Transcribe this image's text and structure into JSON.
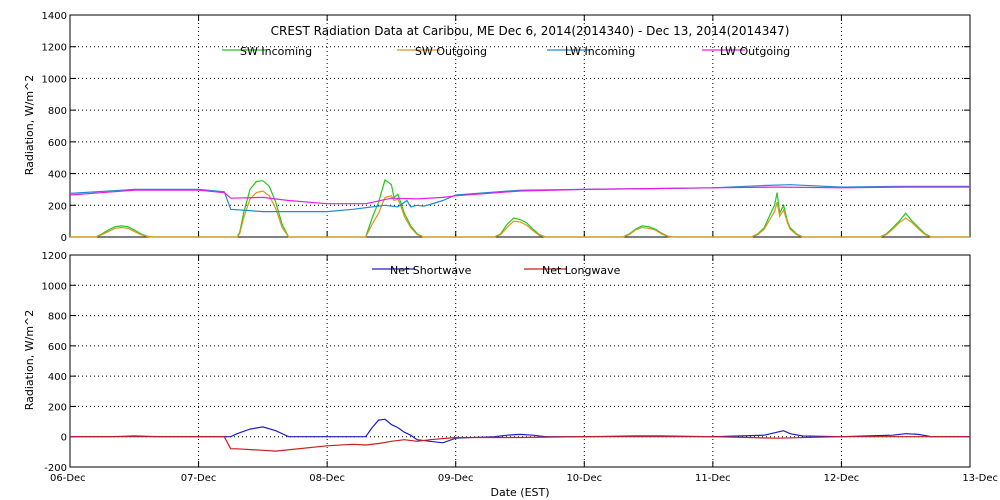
{
  "chart_data": [
    {
      "type": "line",
      "title": "CREST Radiation Data at Caribou, ME   Dec  6, 2014(2014340) - Dec 13, 2014(2014347)",
      "xlabel": "",
      "ylabel": "Radiation, W/m^2",
      "ylim": [
        0,
        1400
      ],
      "yticks": [
        0,
        200,
        400,
        600,
        800,
        1000,
        1200,
        1400
      ],
      "xlim": [
        0,
        7
      ],
      "xticks": [
        0,
        1,
        2,
        3,
        4,
        5,
        6,
        7
      ],
      "grid": true,
      "legend_position": "top",
      "series": [
        {
          "name": "SW Incoming",
          "color": "#22c81e",
          "x": [
            0,
            0.2,
            0.25,
            0.3,
            0.35,
            0.4,
            0.45,
            0.5,
            0.55,
            0.6,
            0.65,
            0.7,
            1.3,
            1.32,
            1.35,
            1.4,
            1.45,
            1.5,
            1.55,
            1.6,
            1.65,
            1.7,
            2.3,
            2.35,
            2.4,
            2.45,
            2.5,
            2.52,
            2.55,
            2.58,
            2.6,
            2.65,
            2.7,
            2.75,
            3.3,
            3.35,
            3.4,
            3.45,
            3.5,
            3.55,
            3.6,
            3.65,
            3.7,
            4.3,
            4.35,
            4.4,
            4.45,
            4.5,
            4.55,
            4.6,
            4.65,
            4.7,
            5.3,
            5.35,
            5.4,
            5.45,
            5.48,
            5.5,
            5.52,
            5.55,
            5.58,
            5.6,
            5.65,
            5.7,
            6.3,
            6.35,
            6.4,
            6.45,
            6.5,
            6.55,
            6.6,
            6.65,
            6.7,
            7
          ],
          "y": [
            0,
            0,
            20,
            45,
            65,
            70,
            65,
            45,
            20,
            5,
            0,
            0,
            0,
            30,
            150,
            300,
            350,
            355,
            320,
            220,
            80,
            0,
            0,
            120,
            220,
            360,
            330,
            250,
            270,
            200,
            150,
            70,
            20,
            0,
            0,
            20,
            80,
            120,
            110,
            90,
            50,
            15,
            0,
            0,
            20,
            50,
            70,
            65,
            50,
            25,
            5,
            0,
            0,
            20,
            60,
            150,
            200,
            280,
            150,
            200,
            100,
            60,
            20,
            0,
            0,
            20,
            60,
            100,
            150,
            100,
            60,
            20,
            0,
            0
          ]
        },
        {
          "name": "SW Outgoing",
          "color": "#e0941e",
          "x": [
            0,
            0.2,
            0.25,
            0.3,
            0.35,
            0.4,
            0.45,
            0.5,
            0.55,
            0.6,
            0.65,
            0.7,
            1.3,
            1.32,
            1.35,
            1.4,
            1.45,
            1.5,
            1.55,
            1.6,
            1.65,
            1.7,
            2.3,
            2.35,
            2.4,
            2.45,
            2.5,
            2.52,
            2.55,
            2.58,
            2.6,
            2.65,
            2.7,
            2.75,
            3.3,
            3.35,
            3.4,
            3.45,
            3.5,
            3.55,
            3.6,
            3.65,
            3.7,
            4.3,
            4.35,
            4.4,
            4.45,
            4.5,
            4.55,
            4.6,
            4.65,
            4.7,
            5.3,
            5.35,
            5.4,
            5.45,
            5.48,
            5.5,
            5.52,
            5.55,
            5.58,
            5.6,
            5.65,
            5.7,
            6.3,
            6.35,
            6.4,
            6.45,
            6.5,
            6.55,
            6.6,
            6.65,
            6.7,
            7
          ],
          "y": [
            0,
            0,
            15,
            35,
            55,
            60,
            55,
            35,
            15,
            3,
            0,
            0,
            0,
            20,
            120,
            240,
            280,
            290,
            260,
            180,
            60,
            0,
            0,
            80,
            150,
            250,
            260,
            230,
            240,
            180,
            130,
            60,
            15,
            0,
            0,
            15,
            60,
            100,
            95,
            75,
            40,
            10,
            0,
            0,
            15,
            45,
            60,
            55,
            45,
            20,
            3,
            0,
            0,
            15,
            50,
            120,
            160,
            220,
            130,
            170,
            90,
            50,
            15,
            0,
            0,
            15,
            50,
            90,
            120,
            90,
            50,
            15,
            0,
            0
          ]
        },
        {
          "name": "LW Incoming",
          "color": "#1e8cd2",
          "x": [
            0,
            0.5,
            1,
            1.2,
            1.25,
            1.5,
            2,
            2.2,
            2.35,
            2.45,
            2.55,
            2.62,
            2.65,
            2.7,
            2.75,
            2.8,
            2.9,
            3,
            3.5,
            4,
            4.5,
            5,
            5.4,
            5.6,
            6,
            6.5,
            7
          ],
          "y": [
            275,
            300,
            300,
            285,
            175,
            160,
            160,
            175,
            190,
            200,
            190,
            230,
            190,
            200,
            195,
            205,
            230,
            265,
            295,
            300,
            305,
            310,
            325,
            330,
            315,
            320,
            320
          ]
        },
        {
          "name": "LW Outgoing",
          "color": "#e61ee6",
          "x": [
            0,
            0.5,
            1,
            1.2,
            1.25,
            1.5,
            1.7,
            2,
            2.3,
            2.5,
            2.7,
            2.9,
            3,
            3.5,
            4,
            4.5,
            5,
            5.5,
            6,
            6.5,
            7
          ],
          "y": [
            265,
            295,
            295,
            280,
            245,
            250,
            230,
            210,
            210,
            245,
            240,
            250,
            260,
            290,
            300,
            305,
            310,
            315,
            310,
            315,
            315
          ]
        }
      ]
    },
    {
      "type": "line",
      "title": "",
      "xlabel": "Date (EST)",
      "ylabel": "Radiation, W/m^2",
      "ylim": [
        -200,
        1200
      ],
      "yticks": [
        -200,
        0,
        200,
        400,
        600,
        800,
        1000,
        1200
      ],
      "xlim": [
        0,
        7
      ],
      "xticks": [
        0,
        1,
        2,
        3,
        4,
        5,
        6,
        7
      ],
      "xticklabels": [
        "06-Dec",
        "07-Dec",
        "08-Dec",
        "09-Dec",
        "10-Dec",
        "11-Dec",
        "12-Dec",
        "13-Dec"
      ],
      "grid": true,
      "legend_position": "top",
      "series": [
        {
          "name": "Net Shortwave",
          "color": "#1e1ec8",
          "x": [
            0,
            0.3,
            0.5,
            0.7,
            1,
            1.2,
            1.25,
            1.3,
            1.4,
            1.5,
            1.6,
            1.7,
            2,
            2.3,
            2.35,
            2.4,
            2.45,
            2.5,
            2.55,
            2.6,
            2.65,
            2.7,
            2.8,
            2.9,
            3,
            3.3,
            3.4,
            3.5,
            3.6,
            3.7,
            4,
            4.4,
            4.6,
            5,
            5.4,
            5.5,
            5.55,
            5.6,
            5.7,
            6,
            6.4,
            6.5,
            6.6,
            6.7,
            7
          ],
          "y": [
            0,
            0,
            5,
            0,
            0,
            0,
            0,
            20,
            50,
            65,
            40,
            0,
            0,
            0,
            60,
            110,
            115,
            80,
            60,
            30,
            10,
            -20,
            -30,
            -40,
            -10,
            0,
            10,
            15,
            10,
            0,
            0,
            5,
            5,
            0,
            10,
            30,
            40,
            20,
            5,
            0,
            10,
            20,
            15,
            0,
            0
          ]
        },
        {
          "name": "Net Longwave",
          "color": "#c81e1e",
          "x": [
            0,
            0.5,
            1,
            1.2,
            1.25,
            1.3,
            1.5,
            1.6,
            2,
            2.2,
            2.3,
            2.4,
            2.5,
            2.6,
            2.7,
            2.8,
            3,
            3.5,
            4,
            5,
            5.5,
            6,
            6.5,
            7
          ],
          "y": [
            0,
            0,
            0,
            0,
            -80,
            -80,
            -90,
            -95,
            -60,
            -50,
            -55,
            -45,
            -30,
            -20,
            -30,
            -20,
            -5,
            -5,
            0,
            0,
            -10,
            0,
            0,
            0
          ]
        }
      ]
    }
  ]
}
